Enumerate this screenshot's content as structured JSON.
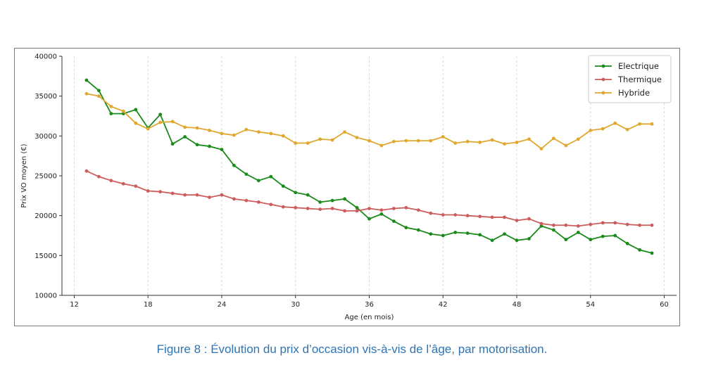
{
  "caption": "Figure 8 : Évolution du prix d’occasion vis-à-vis de l’âge, par motorisation.",
  "chart_data": {
    "type": "line",
    "title": "",
    "xlabel": "Age (en mois)",
    "ylabel": "Prix VO moyen (€)",
    "xlim": [
      11,
      61
    ],
    "ylim": [
      10000,
      40000
    ],
    "xticks": [
      12,
      18,
      24,
      30,
      36,
      42,
      48,
      54,
      60
    ],
    "yticks": [
      10000,
      15000,
      20000,
      25000,
      30000,
      35000,
      40000
    ],
    "grid": "vertical-dashed",
    "legend_position": "top-right",
    "x": [
      13,
      14,
      15,
      16,
      17,
      18,
      19,
      20,
      21,
      22,
      23,
      24,
      25,
      26,
      27,
      28,
      29,
      30,
      31,
      32,
      33,
      34,
      35,
      36,
      37,
      38,
      39,
      40,
      41,
      42,
      43,
      44,
      45,
      46,
      47,
      48,
      49,
      50,
      51,
      52,
      53,
      54,
      55,
      56,
      57,
      58,
      59
    ],
    "series": [
      {
        "name": "Electrique",
        "color": "#1a8a1a",
        "values": [
          37000,
          35700,
          32800,
          32800,
          33300,
          31000,
          32700,
          29000,
          29900,
          28900,
          28700,
          28300,
          26300,
          25200,
          24400,
          24900,
          23700,
          22900,
          22600,
          21700,
          21900,
          22100,
          21000,
          19600,
          20200,
          19300,
          18500,
          18200,
          17700,
          17500,
          17900,
          17800,
          17600,
          16900,
          17700,
          16900,
          17100,
          18700,
          18200,
          17000,
          17900,
          17000,
          17400,
          17500,
          16500,
          15700,
          15300
        ]
      },
      {
        "name": "Thermique",
        "color": "#cd5c5c",
        "values": [
          25600,
          24900,
          24400,
          24000,
          23700,
          23100,
          23000,
          22800,
          22600,
          22600,
          22300,
          22600,
          22100,
          21900,
          21700,
          21400,
          21100,
          21000,
          20900,
          20800,
          20900,
          20600,
          20600,
          20900,
          20700,
          20900,
          21000,
          20700,
          20300,
          20100,
          20100,
          20000,
          19900,
          19800,
          19800,
          19400,
          19600,
          19000,
          18800,
          18800,
          18700,
          18900,
          19100,
          19100,
          18900,
          18800,
          18800
        ]
      },
      {
        "name": "Hybride",
        "color": "#e0a82e",
        "values": [
          35300,
          35000,
          33700,
          33100,
          31600,
          30900,
          31700,
          31800,
          31100,
          31000,
          30700,
          30300,
          30100,
          30800,
          30500,
          30300,
          30000,
          29100,
          29100,
          29600,
          29500,
          30500,
          29800,
          29400,
          28800,
          29300,
          29400,
          29400,
          29400,
          29900,
          29100,
          29300,
          29200,
          29500,
          29000,
          29200,
          29600,
          28400,
          29700,
          28800,
          29600,
          30700,
          30900,
          31600,
          30800,
          31500,
          31500
        ]
      }
    ]
  }
}
